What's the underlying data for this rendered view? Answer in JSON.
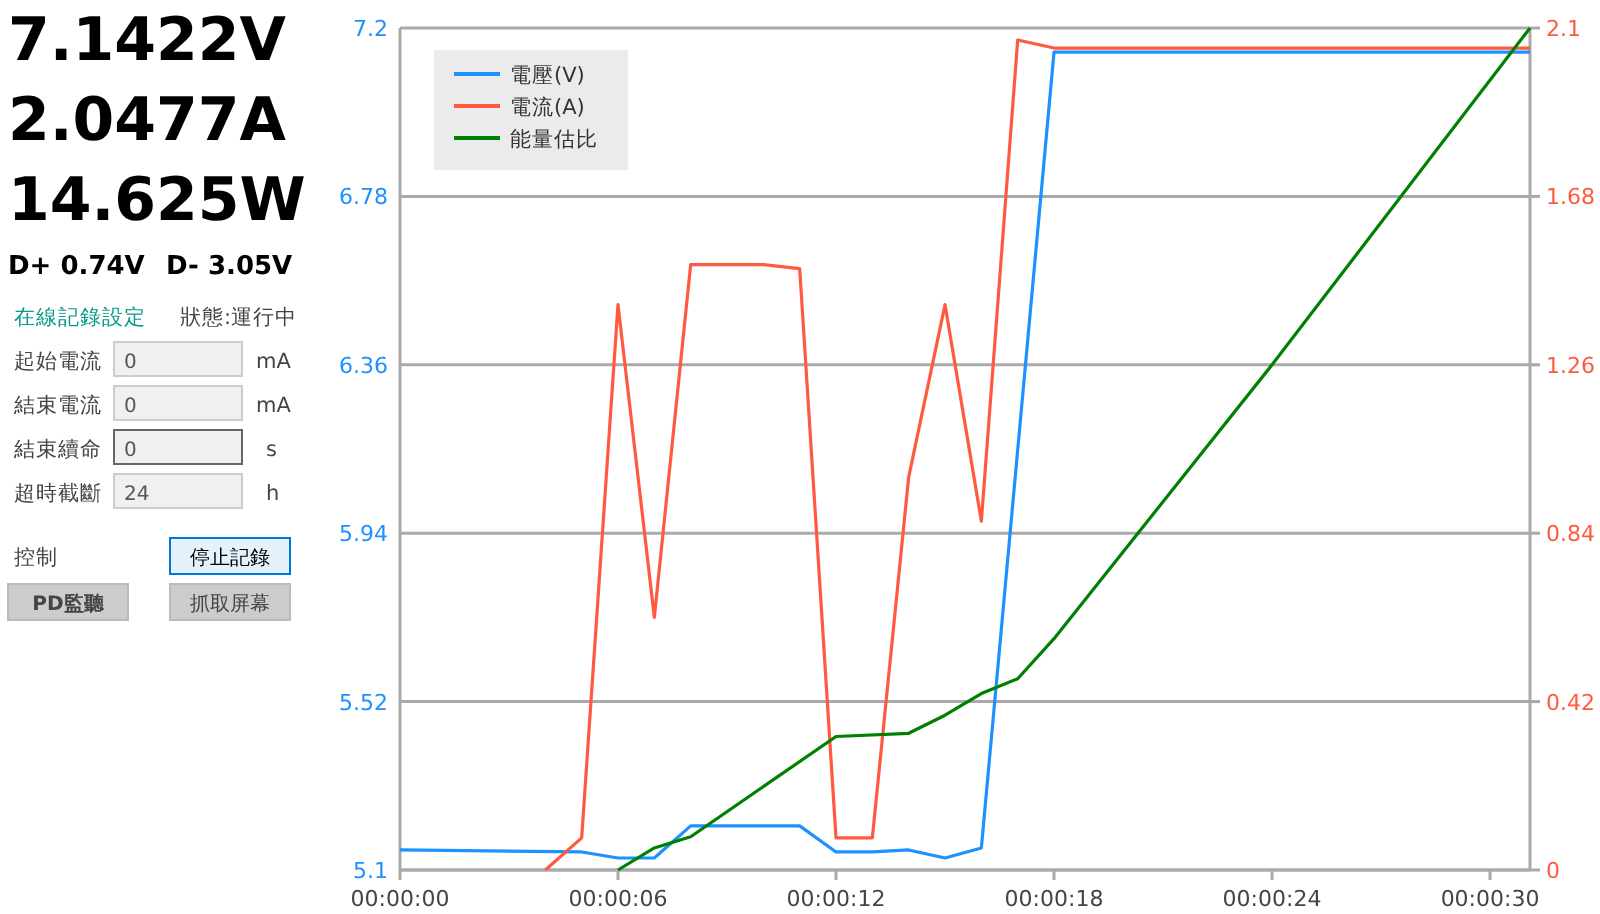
{
  "chart_data": [
    {
      "type": "other",
      "annotations": [
        "7.1422V",
        "2.0477A",
        "14.625W",
        "D+ 0.74V",
        "D- 3.05V",
        "在線記錄設定",
        "狀態:運行中",
        "起始電流",
        "0",
        "mA",
        "結束電流",
        "0",
        "mA",
        "結束續命",
        "0",
        "s",
        "超時截斷",
        "24",
        "h",
        "控制",
        "停止記錄",
        "PD監聽",
        "抓取屏幕"
      ]
    },
    {
      "type": "line",
      "grid": "y",
      "legend": "top left",
      "xlim": [
        0,
        31.1
      ],
      "xticks": [
        {
          "value": 0,
          "label": "00:00:00"
        },
        {
          "value": 6,
          "label": "00:00:06"
        },
        {
          "value": 12,
          "label": "00:00:12"
        },
        {
          "value": 18,
          "label": "00:00:18"
        },
        {
          "value": 24,
          "label": "00:00:24"
        },
        {
          "value": 30,
          "label": "00:00:30"
        }
      ],
      "ylim": [
        5.1,
        7.2
      ],
      "yticks": [
        5.1,
        5.52,
        5.94,
        6.36,
        6.78,
        7.2
      ],
      "y2lim": [
        0,
        2.1
      ],
      "y2ticks": [
        0,
        0.42,
        0.84,
        1.26,
        1.68,
        2.1
      ],
      "series": [
        {
          "name": "電壓(V)",
          "color": "#1e90ff",
          "x": [
            0,
            5,
            6,
            7,
            8,
            11,
            12,
            13,
            14,
            15,
            16,
            18,
            31.1
          ],
          "values": [
            5.15,
            5.145,
            5.13,
            5.13,
            5.21,
            5.21,
            5.145,
            5.145,
            5.15,
            5.13,
            5.155,
            7.14,
            7.14
          ]
        },
        {
          "name": "電流(A)",
          "color": "#ff5a40",
          "axis": "y2",
          "x": [
            4,
            5,
            6,
            7,
            8,
            10,
            11,
            12,
            13,
            14,
            15,
            16,
            17,
            18,
            31.1
          ],
          "values": [
            0,
            0.08,
            1.41,
            0.63,
            1.51,
            1.51,
            1.5,
            0.08,
            0.08,
            0.98,
            1.41,
            0.87,
            2.07,
            2.05,
            2.05
          ]
        },
        {
          "name": "能量估比",
          "color": "#008000",
          "axis": "y2",
          "x": [
            6,
            7,
            8,
            12,
            14,
            15,
            16,
            17,
            18,
            24,
            31.1
          ],
          "values": [
            0,
            0.055,
            0.083,
            0.333,
            0.341,
            0.386,
            0.44,
            0.477,
            0.577,
            1.26,
            2.1
          ]
        }
      ]
    }
  ]
}
